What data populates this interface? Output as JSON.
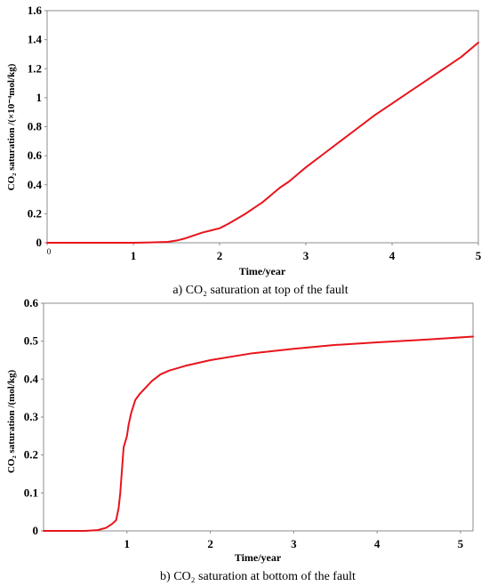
{
  "chart_data": [
    {
      "type": "line",
      "caption": "a) CO₂ saturation at top of the fault",
      "xlabel": "Time/year",
      "ylabel": "CO₂ saturation /(×10⁻⁴mol/kg)",
      "xlim": [
        0,
        5
      ],
      "ylim": [
        0,
        1.6
      ],
      "x_ticks": [
        0,
        1,
        2,
        3,
        4,
        5
      ],
      "x_tick_labels": [
        "0",
        "1",
        "2",
        "3",
        "4",
        "5"
      ],
      "y_ticks": [
        0,
        0.2,
        0.4,
        0.6,
        0.8,
        1.0,
        1.2,
        1.4,
        1.6
      ],
      "y_tick_labels": [
        "0",
        "0.2",
        "0.4",
        "0.6",
        "0.8",
        "1",
        "1.2",
        "1.4",
        "1.6"
      ],
      "grid": false,
      "series": [
        {
          "color": "#e8141c",
          "x": [
            0,
            0.5,
            1.0,
            1.2,
            1.4,
            1.5,
            1.6,
            1.7,
            1.8,
            1.9,
            2.0,
            2.1,
            2.2,
            2.3,
            2.4,
            2.5,
            2.6,
            2.7,
            2.8,
            2.9,
            3.0,
            3.2,
            3.4,
            3.6,
            3.8,
            4.0,
            4.2,
            4.4,
            4.6,
            4.8,
            5.0
          ],
          "y": [
            0,
            0,
            0,
            0.002,
            0.006,
            0.015,
            0.03,
            0.05,
            0.07,
            0.085,
            0.1,
            0.13,
            0.165,
            0.2,
            0.24,
            0.28,
            0.33,
            0.38,
            0.42,
            0.47,
            0.52,
            0.61,
            0.7,
            0.79,
            0.88,
            0.96,
            1.04,
            1.12,
            1.2,
            1.28,
            1.38
          ]
        }
      ]
    },
    {
      "type": "line",
      "caption": "b) CO₂ saturation at bottom of the fault",
      "xlabel": "Time/year",
      "ylabel": "CO₂ saturation /(mol/kg)",
      "xlim": [
        0,
        5.15
      ],
      "ylim": [
        0,
        0.6
      ],
      "x_ticks": [
        1,
        2,
        3,
        4,
        5
      ],
      "x_tick_labels": [
        "1",
        "2",
        "3",
        "4",
        "5"
      ],
      "y_ticks": [
        0,
        0.1,
        0.2,
        0.3,
        0.4,
        0.5,
        0.6
      ],
      "y_tick_labels": [
        "0",
        "0.1",
        "0.2",
        "0.3",
        "0.4",
        "0.5",
        "0.6"
      ],
      "grid": false,
      "series": [
        {
          "color": "#e8141c",
          "x": [
            0,
            0.5,
            0.65,
            0.75,
            0.82,
            0.87,
            0.9,
            0.92,
            0.94,
            0.96,
            0.98,
            1.0,
            1.02,
            1.05,
            1.1,
            1.15,
            1.2,
            1.3,
            1.4,
            1.5,
            1.7,
            2.0,
            2.5,
            3.0,
            3.5,
            4.0,
            4.5,
            5.15
          ],
          "y": [
            0,
            0,
            0.002,
            0.008,
            0.018,
            0.028,
            0.06,
            0.1,
            0.16,
            0.22,
            0.235,
            0.25,
            0.28,
            0.31,
            0.345,
            0.36,
            0.372,
            0.395,
            0.412,
            0.422,
            0.435,
            0.45,
            0.468,
            0.48,
            0.49,
            0.497,
            0.503,
            0.512
          ]
        }
      ]
    }
  ]
}
